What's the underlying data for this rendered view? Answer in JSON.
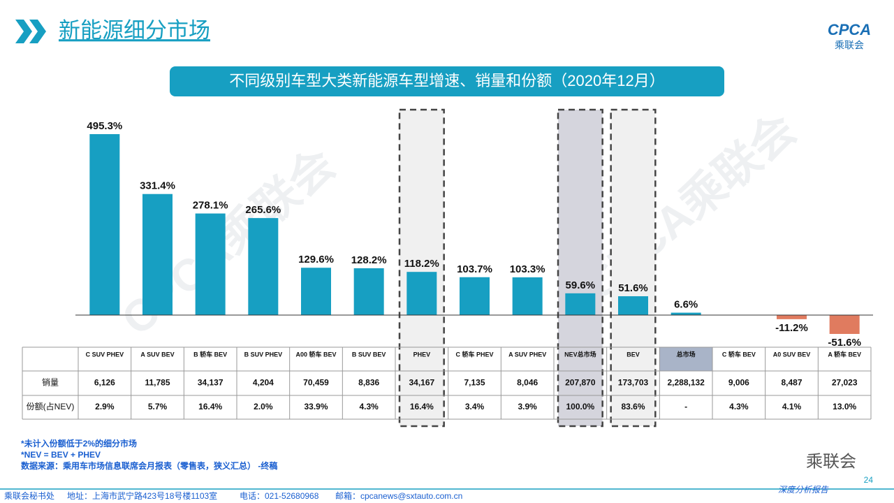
{
  "header": {
    "title": "新能源细分市场",
    "logo": "CPCA",
    "logo_sub": "乘联会"
  },
  "chart_data": {
    "type": "bar",
    "title": "不同级别车型大类新能源车型增速、销量和份额（2020年12月）",
    "categories": [
      "C SUV PHEV",
      "A SUV BEV",
      "B 轿车 BEV",
      "B SUV PHEV",
      "A00 轿车 BEV",
      "B SUV BEV",
      "PHEV",
      "C 轿车 PHEV",
      "A SUV PHEV",
      "NEV总市场",
      "BEV",
      "总市场",
      "C 轿车 BEV",
      "A0 SUV BEV",
      "A 轿车 BEV"
    ],
    "values": [
      495.3,
      331.4,
      278.1,
      265.6,
      129.6,
      128.2,
      118.2,
      103.7,
      103.3,
      59.6,
      51.6,
      6.6,
      null,
      -11.2,
      -51.6
    ],
    "value_labels": [
      "495.3%",
      "331.4%",
      "278.1%",
      "265.6%",
      "129.6%",
      "128.2%",
      "118.2%",
      "103.7%",
      "103.3%",
      "59.6%",
      "51.6%",
      "6.6%",
      null,
      "-11.2%",
      "-51.6%"
    ],
    "color": "#179fc2",
    "negative_color": "#e07b5f"
  },
  "table": {
    "row_labels": [
      "销量",
      "份额(占NEV)"
    ],
    "rows": [
      [
        "6,126",
        "11,785",
        "34,137",
        "4,204",
        "70,459",
        "8,836",
        "34,167",
        "7,135",
        "8,046",
        "207,870",
        "173,703",
        "2,288,132",
        "9,006",
        "8,487",
        "27,023"
      ],
      [
        "2.9%",
        "5.7%",
        "16.4%",
        "2.0%",
        "33.9%",
        "4.3%",
        "16.4%",
        "3.4%",
        "3.9%",
        "100.0%",
        "83.6%",
        "-",
        "4.3%",
        "4.1%",
        "13.0%"
      ]
    ]
  },
  "footnotes": [
    "*未计入份额低于2%的细分市场",
    "*NEV = BEV + PHEV",
    "数据来源：乘用车市场信息联席会月报表（零售表，狭义汇总）  -终稿"
  ],
  "watermark": "CPCA乘联会",
  "footer": {
    "org": "乘联会秘书处",
    "address": "地址：上海市武宁路423号18号楼1103室",
    "phone": "电话：021-52680968",
    "email": "邮箱：cpcanews@sxtauto.com.cn",
    "report": "深度分析报告",
    "page": "24",
    "wechat": "乘联会"
  }
}
